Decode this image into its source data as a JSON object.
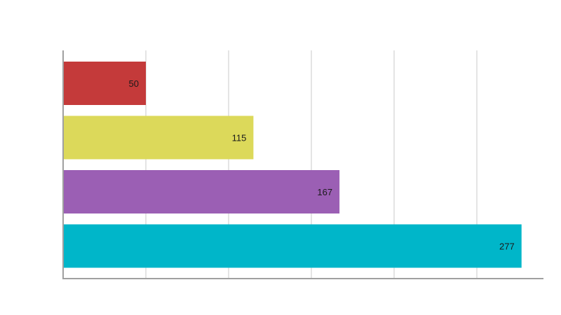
{
  "chart_data": {
    "type": "bar",
    "orientation": "horizontal",
    "title": "",
    "xlabel": "",
    "ylabel": "",
    "categories": [
      "",
      "",
      "",
      ""
    ],
    "values": [
      50,
      115,
      167,
      277
    ],
    "colors": [
      "#c43a3a",
      "#dcd95a",
      "#9b5fb4",
      "#00b6c9"
    ],
    "xlim": [
      0,
      290
    ],
    "grid_step": 50,
    "grid": true,
    "legend": "none",
    "data_labels": true
  }
}
